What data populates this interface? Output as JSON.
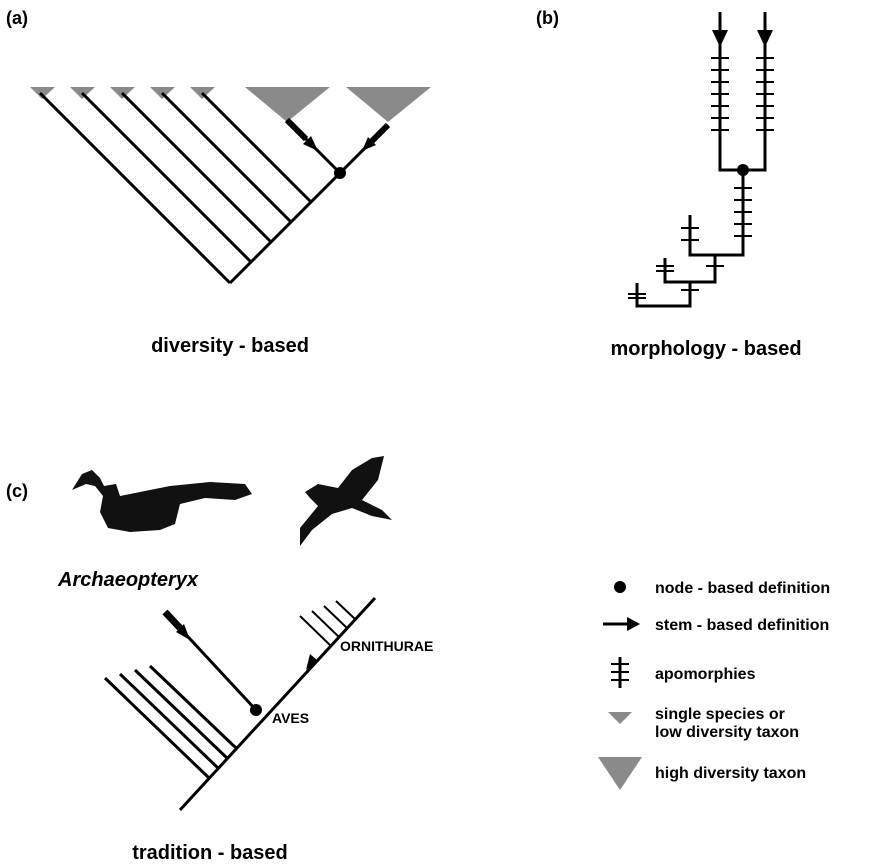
{
  "panels": {
    "a": {
      "label": "(a)",
      "caption": "diversity - based"
    },
    "b": {
      "label": "(b)",
      "caption": "morphology - based"
    },
    "c": {
      "label": "(c)",
      "caption": "tradition - based",
      "taxon": "Archaeopteryx",
      "clades": [
        "ORNITHURAE",
        "AVES"
      ]
    }
  },
  "legend": [
    {
      "label": "node - based definition"
    },
    {
      "label": "stem - based definition"
    },
    {
      "label": "apomorphies"
    },
    {
      "lines": [
        "single species or",
        "low diversity taxon"
      ]
    },
    {
      "label": "high diversity taxon"
    }
  ]
}
